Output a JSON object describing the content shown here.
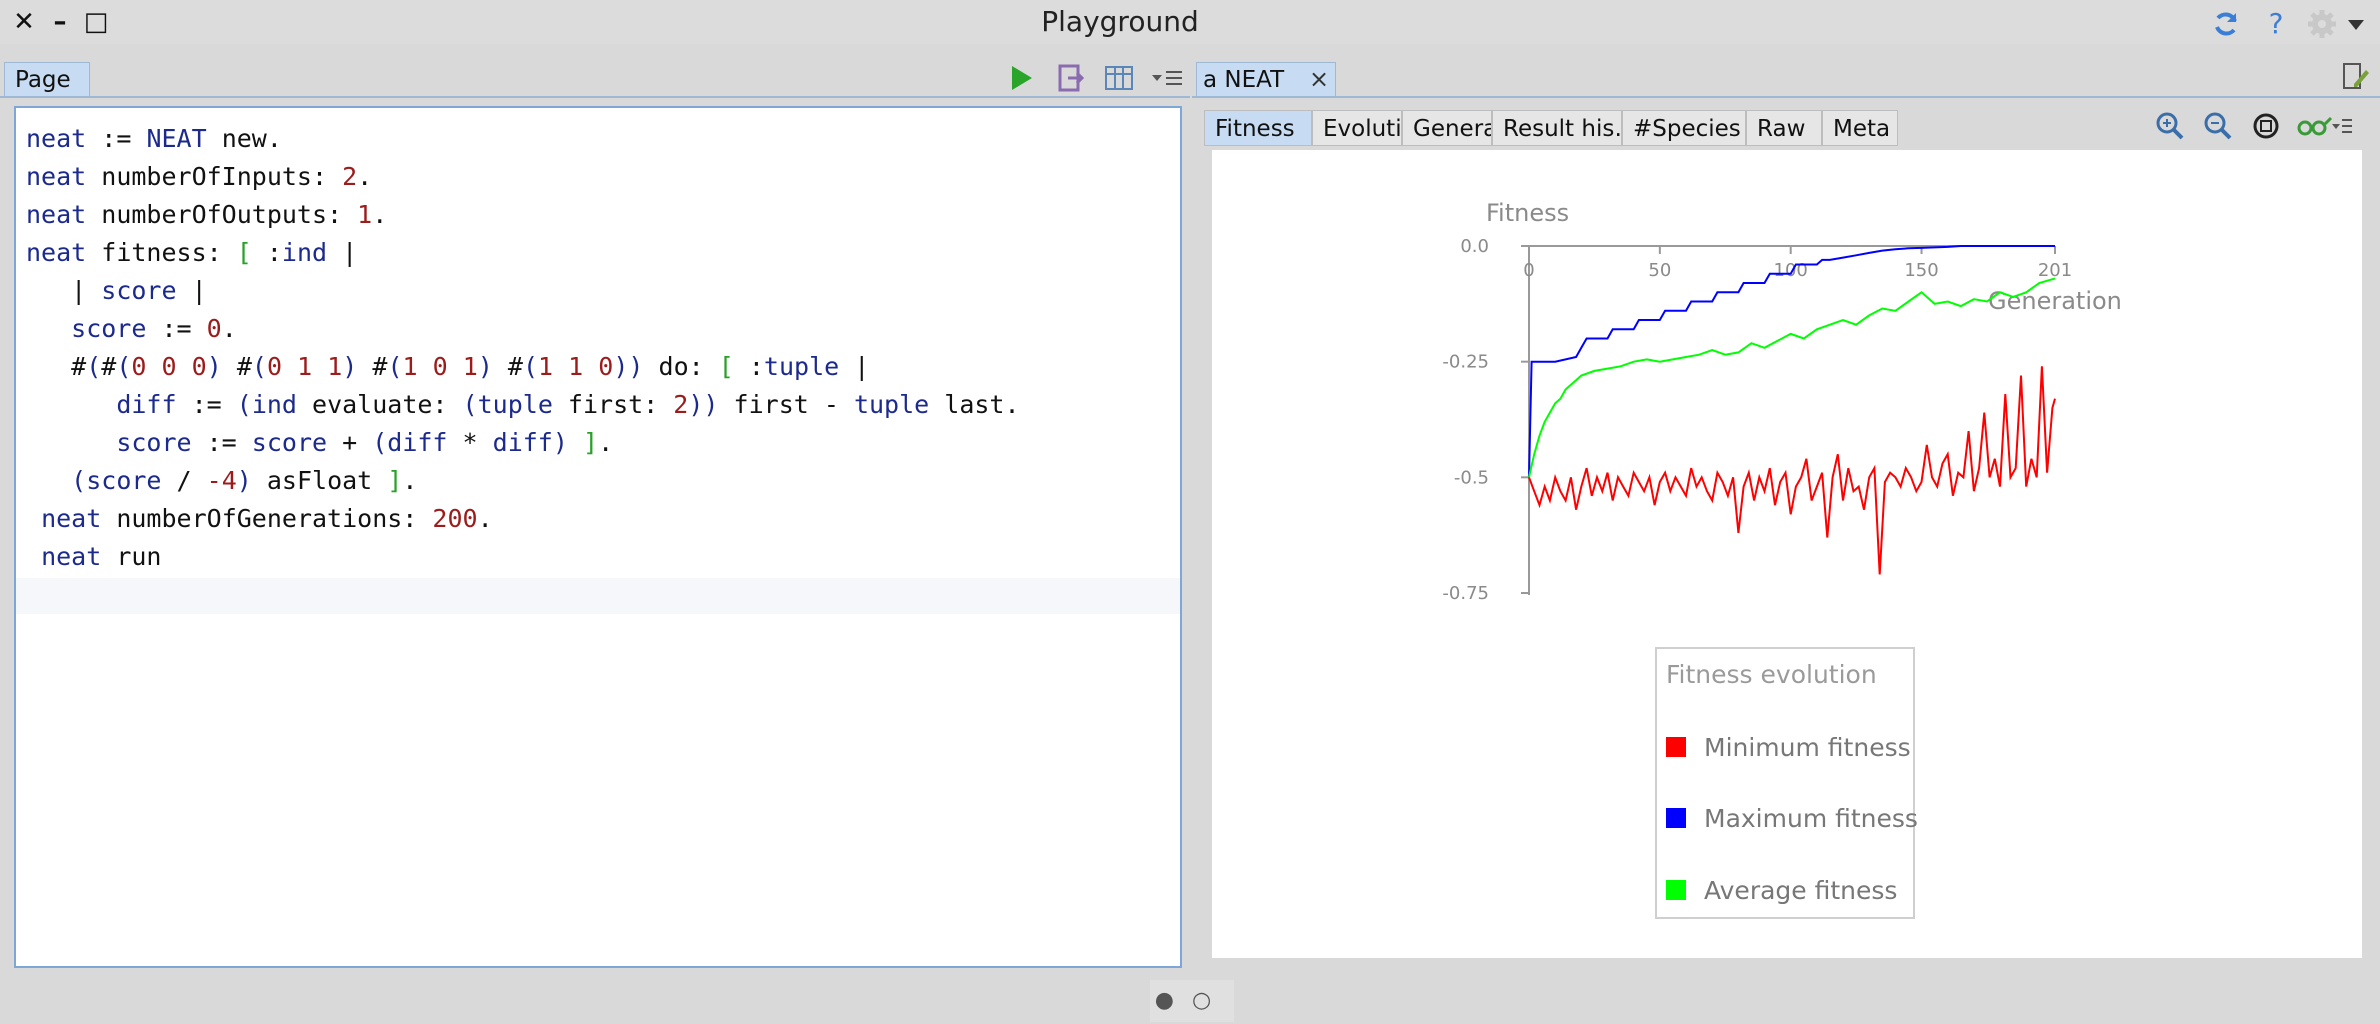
{
  "window": {
    "title": "Playground",
    "close_glyph": "✕",
    "minimize_glyph": "–",
    "maximize_glyph": "□",
    "icons": [
      "refresh-icon",
      "help-icon",
      "gear-icon",
      "chevron-down-icon"
    ],
    "help_glyph": "?"
  },
  "left_pane": {
    "tab_label": "Page",
    "toolbar_icons": [
      "run-icon",
      "output-icon",
      "inspect-icon",
      "menu-icon"
    ],
    "code_lines": [
      "neat := NEAT new.",
      "neat numberOfInputs: 2.",
      "neat numberOfOutputs: 1.",
      "neat fitness: [ :ind |",
      "   | score |",
      "   score := 0.",
      "   #(#(0 0 0) #(0 1 1) #(1 0 1) #(1 1 0)) do: [ :tuple |",
      "      diff := (ind evaluate: (tuple first: 2)) first - tuple last.",
      "      score := score + (diff * diff) ].",
      "   (score / -4) asFloat ].",
      " neat numberOfGenerations: 200.",
      " neat run"
    ]
  },
  "right_pane": {
    "tab_label": "a NEAT",
    "close_glyph": "×",
    "subtabs": [
      "Fitness",
      "Evolution",
      "Generatic…",
      "Result his…",
      "#Species",
      "Raw",
      "Meta"
    ],
    "active_subtab": "Fitness",
    "zoom_icons": [
      "zoom-in-icon",
      "zoom-out-icon",
      "zoom-fit-icon",
      "glasses-icon"
    ]
  },
  "chart_data": {
    "type": "line",
    "title": "",
    "ylabel": "Fitness",
    "xlabel": "Generation",
    "xlim": [
      0,
      201
    ],
    "ylim": [
      -0.75,
      0.0
    ],
    "x_ticks": [
      0,
      50,
      100,
      150,
      201
    ],
    "y_ticks": [
      0.0,
      -0.25,
      -0.5,
      -0.75
    ],
    "x_tick_labels": [
      "0",
      "50",
      "100",
      "150",
      "201"
    ],
    "y_tick_labels": [
      "0.0",
      "-0.25",
      "-0.5",
      "-0.75"
    ],
    "legend": {
      "title": "Fitness evolution",
      "placement": "bottom-center"
    },
    "series": [
      {
        "name": "Minimum fitness",
        "color": "#ff0000",
        "x": [
          0,
          2,
          4,
          6,
          8,
          10,
          12,
          14,
          16,
          18,
          20,
          22,
          24,
          26,
          28,
          30,
          32,
          34,
          36,
          38,
          40,
          42,
          44,
          46,
          48,
          50,
          52,
          54,
          56,
          58,
          60,
          62,
          64,
          66,
          68,
          70,
          72,
          74,
          76,
          78,
          80,
          82,
          84,
          86,
          88,
          90,
          92,
          94,
          96,
          98,
          100,
          102,
          104,
          106,
          108,
          110,
          112,
          114,
          116,
          118,
          120,
          122,
          124,
          126,
          128,
          130,
          132,
          134,
          136,
          138,
          140,
          142,
          144,
          146,
          148,
          150,
          152,
          154,
          156,
          158,
          160,
          162,
          164,
          166,
          168,
          170,
          172,
          174,
          176,
          178,
          180,
          182,
          184,
          186,
          188,
          190,
          192,
          194,
          196,
          198,
          200,
          201
        ],
        "values": [
          -0.5,
          -0.53,
          -0.56,
          -0.52,
          -0.55,
          -0.5,
          -0.53,
          -0.55,
          -0.5,
          -0.57,
          -0.52,
          -0.48,
          -0.54,
          -0.5,
          -0.53,
          -0.49,
          -0.55,
          -0.5,
          -0.52,
          -0.54,
          -0.49,
          -0.51,
          -0.53,
          -0.5,
          -0.56,
          -0.51,
          -0.49,
          -0.53,
          -0.5,
          -0.52,
          -0.54,
          -0.48,
          -0.52,
          -0.5,
          -0.53,
          -0.55,
          -0.49,
          -0.51,
          -0.54,
          -0.5,
          -0.62,
          -0.52,
          -0.49,
          -0.55,
          -0.5,
          -0.53,
          -0.48,
          -0.56,
          -0.51,
          -0.49,
          -0.58,
          -0.52,
          -0.5,
          -0.46,
          -0.55,
          -0.52,
          -0.49,
          -0.63,
          -0.5,
          -0.45,
          -0.55,
          -0.48,
          -0.53,
          -0.52,
          -0.57,
          -0.5,
          -0.48,
          -0.71,
          -0.51,
          -0.49,
          -0.5,
          -0.52,
          -0.48,
          -0.5,
          -0.53,
          -0.51,
          -0.43,
          -0.5,
          -0.52,
          -0.47,
          -0.45,
          -0.54,
          -0.49,
          -0.5,
          -0.4,
          -0.53,
          -0.48,
          -0.36,
          -0.5,
          -0.46,
          -0.52,
          -0.32,
          -0.5,
          -0.48,
          -0.28,
          -0.52,
          -0.46,
          -0.5,
          -0.26,
          -0.49,
          -0.35,
          -0.33
        ]
      },
      {
        "name": "Maximum fitness",
        "color": "#0000ff",
        "x": [
          0,
          1,
          2,
          10,
          18,
          20,
          22,
          30,
          32,
          40,
          42,
          50,
          52,
          60,
          62,
          70,
          72,
          80,
          82,
          90,
          92,
          100,
          102,
          110,
          112,
          115,
          120,
          125,
          130,
          135,
          140,
          145,
          150,
          155,
          160,
          165,
          170,
          175,
          180,
          185,
          190,
          195,
          201
        ],
        "values": [
          -0.5,
          -0.25,
          -0.25,
          -0.25,
          -0.24,
          -0.22,
          -0.2,
          -0.2,
          -0.18,
          -0.18,
          -0.16,
          -0.16,
          -0.14,
          -0.14,
          -0.12,
          -0.12,
          -0.1,
          -0.1,
          -0.08,
          -0.08,
          -0.06,
          -0.06,
          -0.04,
          -0.04,
          -0.03,
          -0.03,
          -0.025,
          -0.02,
          -0.015,
          -0.01,
          -0.007,
          -0.005,
          -0.004,
          -0.003,
          -0.002,
          0.0,
          0.0,
          0.0,
          0.0,
          0.0,
          0.0,
          0.0,
          0.0
        ]
      },
      {
        "name": "Average fitness",
        "color": "#00ff00",
        "x": [
          0,
          2,
          4,
          6,
          8,
          10,
          12,
          14,
          16,
          18,
          20,
          25,
          30,
          35,
          40,
          45,
          50,
          55,
          60,
          65,
          70,
          75,
          80,
          85,
          90,
          95,
          100,
          105,
          110,
          115,
          120,
          125,
          130,
          135,
          140,
          145,
          150,
          155,
          160,
          165,
          170,
          175,
          180,
          185,
          190,
          195,
          201
        ],
        "values": [
          -0.5,
          -0.45,
          -0.41,
          -0.38,
          -0.36,
          -0.34,
          -0.33,
          -0.31,
          -0.3,
          -0.29,
          -0.28,
          -0.27,
          -0.265,
          -0.26,
          -0.25,
          -0.245,
          -0.25,
          -0.245,
          -0.24,
          -0.235,
          -0.225,
          -0.235,
          -0.23,
          -0.21,
          -0.22,
          -0.205,
          -0.19,
          -0.2,
          -0.18,
          -0.17,
          -0.16,
          -0.17,
          -0.15,
          -0.135,
          -0.14,
          -0.12,
          -0.1,
          -0.125,
          -0.12,
          -0.13,
          -0.115,
          -0.12,
          -0.1,
          -0.11,
          -0.1,
          -0.08,
          -0.07
        ]
      }
    ]
  },
  "bottom": {
    "pager_glyph": "●○"
  }
}
